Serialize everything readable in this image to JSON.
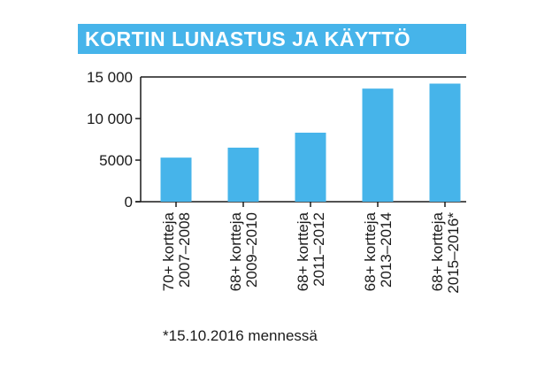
{
  "chart_data": {
    "type": "bar",
    "title": "KORTIN LUNASTUS JA KÄYTTÖ",
    "categories": [
      [
        "70+ kortteja",
        "2007–2008"
      ],
      [
        "68+ kortteja",
        "2009–2010"
      ],
      [
        "68+ kortteja",
        "2011–2012"
      ],
      [
        "68+ kortteja",
        "2013–2014"
      ],
      [
        "68+ kortteja",
        "2015–2016*"
      ]
    ],
    "values": [
      5300,
      6500,
      8300,
      13600,
      14200
    ],
    "yticks": [
      0,
      5000,
      10000,
      15000
    ],
    "ytick_labels": [
      "0",
      "5000",
      "10 000",
      "15 000"
    ],
    "ylim": [
      0,
      15000
    ],
    "grid": false,
    "bar_color": "#46b4ea",
    "footnote": "*15.10.2016 mennessä"
  }
}
